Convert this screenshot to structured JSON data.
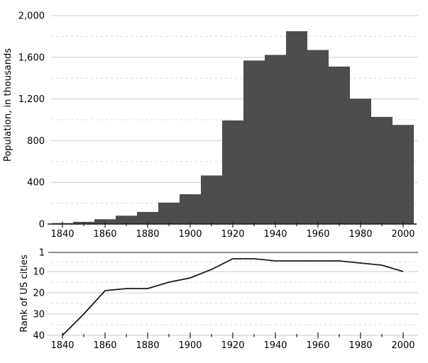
{
  "figure": {
    "background": "#ffffff",
    "description": "Two stacked charts sharing a census-year axis: population histogram (top) and city-rank line chart (bottom)"
  },
  "chart_data": [
    {
      "type": "bar",
      "name": "population-histogram",
      "title": "",
      "xlabel": "",
      "ylabel": "Population, in thousands",
      "categories": [
        1840,
        1850,
        1860,
        1870,
        1880,
        1890,
        1900,
        1910,
        1920,
        1930,
        1940,
        1950,
        1960,
        1970,
        1980,
        1990,
        2000
      ],
      "values": [
        9,
        21,
        46,
        80,
        116,
        206,
        286,
        466,
        994,
        1569,
        1623,
        1850,
        1670,
        1511,
        1203,
        1028,
        951
      ],
      "bar_width_years": 10,
      "xlim": [
        1833,
        2007
      ],
      "ylim": [
        0,
        2000
      ],
      "yticks": [
        0,
        400,
        800,
        1200,
        1600,
        2000
      ],
      "ytick_labels": [
        "0",
        "400",
        "800",
        "1,200",
        "1,600",
        "2,000"
      ],
      "xticks_labeled": [
        1840,
        1860,
        1880,
        1900,
        1920,
        1940,
        1960,
        1980,
        2000
      ],
      "xtick_labels": [
        "1840",
        "1860",
        "1880",
        "1900",
        "1920",
        "1940",
        "1960",
        "1980",
        "2000"
      ],
      "xticks_minor": [
        1850,
        1870,
        1890,
        1910,
        1930,
        1950,
        1970,
        1990
      ],
      "grid": {
        "solid_at_yticks": true,
        "dashed_at_midpoints": true,
        "legend": "none"
      },
      "colors": {
        "bar": "#4d4d4d",
        "grid_solid": "#cccccc",
        "grid_dashed": "#d9d9d9",
        "axis": "#1a1a1a",
        "text": "#000000"
      }
    },
    {
      "type": "line",
      "name": "rank-of-us-cities",
      "title": "",
      "xlabel": "",
      "ylabel": "Rank of US cities",
      "x": [
        1840,
        1850,
        1860,
        1870,
        1880,
        1890,
        1900,
        1910,
        1920,
        1930,
        1940,
        1950,
        1960,
        1970,
        1980,
        1990,
        2000
      ],
      "y": [
        40,
        30,
        19,
        18,
        18,
        15,
        13,
        9,
        4,
        4,
        5,
        5,
        5,
        5,
        6,
        7,
        10
      ],
      "y_inverted": true,
      "xlim": [
        1833,
        2007
      ],
      "ylim": [
        1,
        40
      ],
      "yticks": [
        1,
        10,
        20,
        30,
        40
      ],
      "ytick_labels": [
        "1",
        "10",
        "20",
        "30",
        "40"
      ],
      "xticks_labeled": [
        1840,
        1860,
        1880,
        1900,
        1920,
        1940,
        1960,
        1980,
        2000
      ],
      "xtick_labels": [
        "1840",
        "1860",
        "1880",
        "1900",
        "1920",
        "1940",
        "1960",
        "1980",
        "2000"
      ],
      "xticks_minor": [
        1850,
        1870,
        1890,
        1910,
        1930,
        1950,
        1970,
        1990
      ],
      "grid": {
        "dark_rule_at_top": true,
        "solid_at_yticks": true,
        "dashed_at_midpoints": true,
        "legend": "none"
      },
      "colors": {
        "line": "#1a1a1a",
        "rule_top": "#4d4d4d",
        "grid_solid": "#cccccc",
        "grid_dashed": "#d9d9d9",
        "axis": "#cccccc",
        "tick": "#1a1a1a",
        "text": "#000000"
      }
    }
  ]
}
